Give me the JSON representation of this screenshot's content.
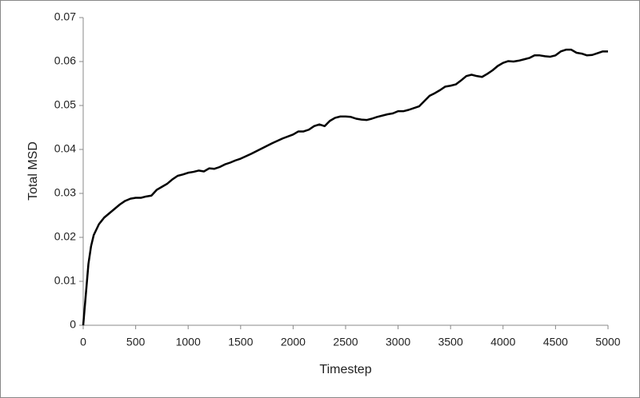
{
  "chart_data": {
    "type": "line",
    "x_label": "Timestep",
    "y_label": "Total MSD",
    "x": [
      0,
      25,
      50,
      75,
      100,
      150,
      200,
      250,
      300,
      350,
      400,
      450,
      500,
      550,
      600,
      650,
      700,
      750,
      800,
      850,
      900,
      950,
      1000,
      1050,
      1100,
      1150,
      1200,
      1250,
      1300,
      1350,
      1400,
      1450,
      1500,
      1600,
      1700,
      1800,
      1900,
      2000,
      2050,
      2100,
      2150,
      2200,
      2250,
      2300,
      2350,
      2400,
      2450,
      2500,
      2550,
      2600,
      2650,
      2700,
      2750,
      2800,
      2900,
      2950,
      3000,
      3050,
      3100,
      3200,
      3250,
      3300,
      3350,
      3400,
      3450,
      3500,
      3550,
      3600,
      3650,
      3700,
      3750,
      3800,
      3850,
      3900,
      3950,
      4000,
      4050,
      4100,
      4150,
      4200,
      4250,
      4300,
      4350,
      4400,
      4450,
      4500,
      4550,
      4600,
      4650,
      4700,
      4750,
      4800,
      4850,
      4900,
      4950,
      5000
    ],
    "series": [
      {
        "name": "Total MSD",
        "color": "#000000",
        "values": [
          0,
          0.007,
          0.014,
          0.018,
          0.0205,
          0.023,
          0.0245,
          0.0255,
          0.0265,
          0.0275,
          0.0283,
          0.0288,
          0.029,
          0.029,
          0.0293,
          0.0295,
          0.0308,
          0.0315,
          0.0322,
          0.0332,
          0.034,
          0.0343,
          0.0347,
          0.0349,
          0.0352,
          0.035,
          0.0357,
          0.0356,
          0.036,
          0.0366,
          0.037,
          0.0375,
          0.0379,
          0.039,
          0.0402,
          0.0414,
          0.0425,
          0.0434,
          0.0441,
          0.0441,
          0.0445,
          0.0453,
          0.0457,
          0.0453,
          0.0465,
          0.0472,
          0.0475,
          0.0475,
          0.0474,
          0.047,
          0.0468,
          0.0467,
          0.047,
          0.0474,
          0.048,
          0.0482,
          0.0487,
          0.0487,
          0.049,
          0.0498,
          0.051,
          0.0522,
          0.0528,
          0.0535,
          0.0543,
          0.0545,
          0.0548,
          0.0557,
          0.0567,
          0.057,
          0.0567,
          0.0565,
          0.0572,
          0.058,
          0.059,
          0.0597,
          0.0601,
          0.06,
          0.0602,
          0.0605,
          0.0608,
          0.0614,
          0.0614,
          0.0612,
          0.0611,
          0.0614,
          0.0623,
          0.0627,
          0.0627,
          0.062,
          0.0618,
          0.0614,
          0.0615,
          0.0619,
          0.0623,
          0.0623
        ]
      }
    ],
    "xlim": [
      0,
      5000
    ],
    "xticks": [
      0,
      500,
      1000,
      1500,
      2000,
      2500,
      3000,
      3500,
      4000,
      4500,
      5000
    ],
    "ylim": [
      0,
      0.07
    ],
    "yticks": [
      0,
      0.01,
      0.02,
      0.03,
      0.04,
      0.05,
      0.06,
      0.07
    ],
    "grid": false
  }
}
